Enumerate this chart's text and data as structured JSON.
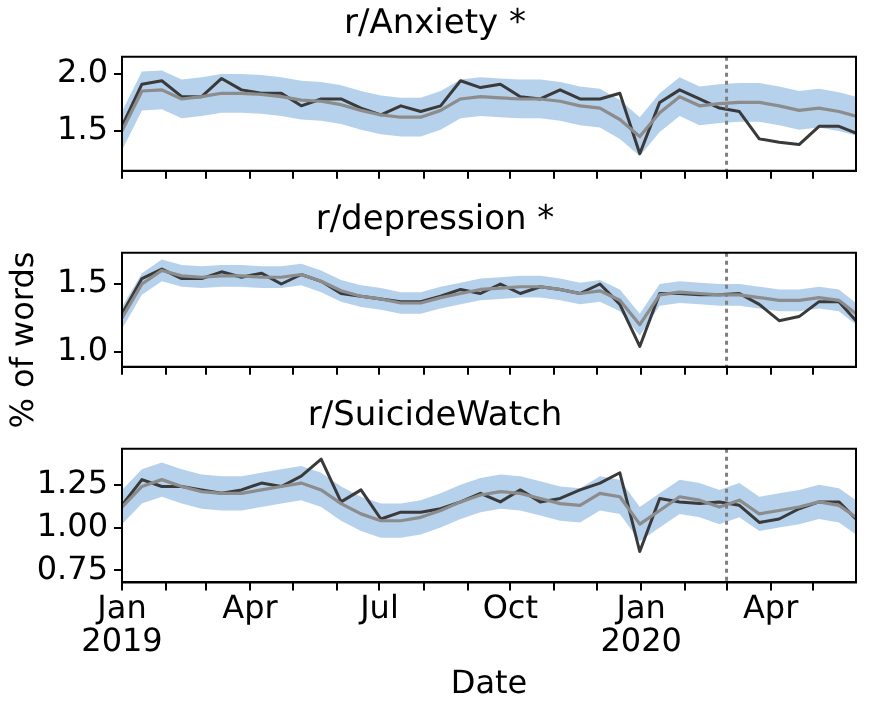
{
  "chart_data": [
    {
      "type": "line",
      "title": "r/Anxiety *",
      "tick_labels": "y",
      "grid": false,
      "legend": false,
      "marker": "none",
      "line_style": "solid",
      "x": [
        "2019-01-01",
        "2019-01-15",
        "2019-01-29",
        "2019-02-12",
        "2019-02-26",
        "2019-03-12",
        "2019-03-26",
        "2019-04-09",
        "2019-04-23",
        "2019-05-07",
        "2019-05-21",
        "2019-06-04",
        "2019-06-18",
        "2019-07-02",
        "2019-07-16",
        "2019-07-30",
        "2019-08-13",
        "2019-08-27",
        "2019-09-10",
        "2019-09-24",
        "2019-10-08",
        "2019-10-22",
        "2019-11-05",
        "2019-11-19",
        "2019-12-03",
        "2019-12-17",
        "2019-12-31",
        "2020-01-14",
        "2020-01-28",
        "2020-02-11",
        "2020-02-25",
        "2020-03-10",
        "2020-03-24",
        "2020-04-07",
        "2020-04-21",
        "2020-05-05",
        "2020-05-19",
        "2020-05-31"
      ],
      "xlim": [
        "2019-01-01",
        "2020-05-31"
      ],
      "xticks": [
        {
          "value": "2019-01-01",
          "label": null
        },
        {
          "value": "2019-02-01",
          "label": null
        },
        {
          "value": "2019-03-01",
          "label": null
        },
        {
          "value": "2019-04-01",
          "label": null
        },
        {
          "value": "2019-05-01",
          "label": null
        },
        {
          "value": "2019-06-01",
          "label": null
        },
        {
          "value": "2019-07-01",
          "label": null
        },
        {
          "value": "2019-08-01",
          "label": null
        },
        {
          "value": "2019-09-01",
          "label": null
        },
        {
          "value": "2019-10-01",
          "label": null
        },
        {
          "value": "2019-11-01",
          "label": null
        },
        {
          "value": "2019-12-01",
          "label": null
        },
        {
          "value": "2020-01-01",
          "label": null
        },
        {
          "value": "2020-02-01",
          "label": null
        },
        {
          "value": "2020-03-01",
          "label": null
        },
        {
          "value": "2020-04-01",
          "label": null
        },
        {
          "value": "2020-05-01",
          "label": null
        }
      ],
      "ylim": [
        1.15,
        2.15
      ],
      "yticks": [
        {
          "value": 1.5,
          "label": "1.5"
        },
        {
          "value": 2.0,
          "label": "2.0"
        }
      ],
      "ref_lines": [
        {
          "axis": "x",
          "value": "2020-03-01",
          "color": "#808080",
          "line_style": "dotted"
        }
      ],
      "series": [
        {
          "color": "#8c8c8c",
          "values": [
            1.5,
            1.85,
            1.86,
            1.78,
            1.8,
            1.83,
            1.83,
            1.82,
            1.8,
            1.77,
            1.76,
            1.73,
            1.68,
            1.64,
            1.62,
            1.62,
            1.68,
            1.78,
            1.8,
            1.79,
            1.78,
            1.78,
            1.76,
            1.72,
            1.7,
            1.6,
            1.45,
            1.66,
            1.8,
            1.72,
            1.74,
            1.75,
            1.75,
            1.72,
            1.68,
            1.7,
            1.67,
            1.63
          ],
          "lower": [
            1.33,
            1.68,
            1.69,
            1.61,
            1.63,
            1.66,
            1.66,
            1.65,
            1.63,
            1.6,
            1.59,
            1.56,
            1.51,
            1.47,
            1.45,
            1.45,
            1.51,
            1.61,
            1.63,
            1.62,
            1.61,
            1.61,
            1.59,
            1.55,
            1.53,
            1.43,
            1.28,
            1.49,
            1.63,
            1.55,
            1.57,
            1.58,
            1.58,
            1.55,
            1.51,
            1.53,
            1.5,
            1.46
          ],
          "upper": [
            1.67,
            2.02,
            2.03,
            1.95,
            1.97,
            2.0,
            2.0,
            1.99,
            1.97,
            1.94,
            1.93,
            1.9,
            1.85,
            1.81,
            1.79,
            1.79,
            1.85,
            1.95,
            1.97,
            1.96,
            1.95,
            1.95,
            1.93,
            1.89,
            1.87,
            1.77,
            1.62,
            1.83,
            1.97,
            1.89,
            1.91,
            1.92,
            1.92,
            1.89,
            1.85,
            1.87,
            1.84,
            1.8
          ]
        },
        {
          "color": "#3a3a3a",
          "values": [
            1.54,
            1.91,
            1.94,
            1.8,
            1.8,
            1.96,
            1.86,
            1.83,
            1.83,
            1.72,
            1.78,
            1.78,
            1.7,
            1.64,
            1.72,
            1.67,
            1.72,
            1.94,
            1.88,
            1.91,
            1.8,
            1.78,
            1.86,
            1.78,
            1.78,
            1.83,
            1.3,
            1.75,
            1.86,
            1.78,
            1.7,
            1.67,
            1.43,
            1.4,
            1.38,
            1.54,
            1.54,
            1.48
          ]
        }
      ]
    },
    {
      "type": "line",
      "title": "r/depression *",
      "ylabel": "% of words",
      "tick_labels": "y",
      "grid": false,
      "legend": false,
      "marker": "none",
      "line_style": "solid",
      "x": [
        "2019-01-01",
        "2019-01-15",
        "2019-01-29",
        "2019-02-12",
        "2019-02-26",
        "2019-03-12",
        "2019-03-26",
        "2019-04-09",
        "2019-04-23",
        "2019-05-07",
        "2019-05-21",
        "2019-06-04",
        "2019-06-18",
        "2019-07-02",
        "2019-07-16",
        "2019-07-30",
        "2019-08-13",
        "2019-08-27",
        "2019-09-10",
        "2019-09-24",
        "2019-10-08",
        "2019-10-22",
        "2019-11-05",
        "2019-11-19",
        "2019-12-03",
        "2019-12-17",
        "2019-12-31",
        "2020-01-14",
        "2020-01-28",
        "2020-02-11",
        "2020-02-25",
        "2020-03-10",
        "2020-03-24",
        "2020-04-07",
        "2020-04-21",
        "2020-05-05",
        "2020-05-19",
        "2020-05-31"
      ],
      "xlim": [
        "2019-01-01",
        "2020-05-31"
      ],
      "xticks": [
        {
          "value": "2019-01-01",
          "label": null
        },
        {
          "value": "2019-02-01",
          "label": null
        },
        {
          "value": "2019-03-01",
          "label": null
        },
        {
          "value": "2019-04-01",
          "label": null
        },
        {
          "value": "2019-05-01",
          "label": null
        },
        {
          "value": "2019-06-01",
          "label": null
        },
        {
          "value": "2019-07-01",
          "label": null
        },
        {
          "value": "2019-08-01",
          "label": null
        },
        {
          "value": "2019-09-01",
          "label": null
        },
        {
          "value": "2019-10-01",
          "label": null
        },
        {
          "value": "2019-11-01",
          "label": null
        },
        {
          "value": "2019-12-01",
          "label": null
        },
        {
          "value": "2020-01-01",
          "label": null
        },
        {
          "value": "2020-02-01",
          "label": null
        },
        {
          "value": "2020-03-01",
          "label": null
        },
        {
          "value": "2020-04-01",
          "label": null
        },
        {
          "value": "2020-05-01",
          "label": null
        }
      ],
      "ylim": [
        0.89,
        1.73
      ],
      "yticks": [
        {
          "value": 1.0,
          "label": "1.0"
        },
        {
          "value": 1.5,
          "label": "1.5"
        }
      ],
      "ref_lines": [
        {
          "axis": "x",
          "value": "2020-03-01",
          "color": "#808080",
          "line_style": "dotted"
        }
      ],
      "series": [
        {
          "color": "#8c8c8c",
          "values": [
            1.25,
            1.5,
            1.6,
            1.56,
            1.55,
            1.56,
            1.56,
            1.55,
            1.55,
            1.57,
            1.52,
            1.45,
            1.41,
            1.39,
            1.36,
            1.36,
            1.4,
            1.43,
            1.46,
            1.47,
            1.48,
            1.48,
            1.46,
            1.43,
            1.45,
            1.38,
            1.2,
            1.42,
            1.44,
            1.43,
            1.42,
            1.42,
            1.4,
            1.38,
            1.38,
            1.4,
            1.38,
            1.28
          ],
          "lower": [
            1.17,
            1.42,
            1.52,
            1.48,
            1.47,
            1.48,
            1.48,
            1.47,
            1.47,
            1.49,
            1.44,
            1.37,
            1.33,
            1.31,
            1.28,
            1.28,
            1.32,
            1.35,
            1.38,
            1.39,
            1.4,
            1.4,
            1.38,
            1.35,
            1.37,
            1.3,
            1.12,
            1.34,
            1.36,
            1.35,
            1.34,
            1.34,
            1.32,
            1.3,
            1.3,
            1.32,
            1.3,
            1.2
          ],
          "upper": [
            1.33,
            1.58,
            1.68,
            1.64,
            1.63,
            1.64,
            1.64,
            1.63,
            1.63,
            1.65,
            1.6,
            1.53,
            1.49,
            1.47,
            1.44,
            1.44,
            1.48,
            1.51,
            1.54,
            1.55,
            1.56,
            1.56,
            1.54,
            1.51,
            1.53,
            1.46,
            1.28,
            1.5,
            1.52,
            1.51,
            1.5,
            1.5,
            1.48,
            1.46,
            1.46,
            1.48,
            1.46,
            1.36
          ]
        },
        {
          "color": "#3a3a3a",
          "values": [
            1.28,
            1.54,
            1.61,
            1.54,
            1.54,
            1.59,
            1.55,
            1.58,
            1.5,
            1.57,
            1.52,
            1.43,
            1.41,
            1.39,
            1.37,
            1.37,
            1.41,
            1.46,
            1.43,
            1.5,
            1.43,
            1.48,
            1.46,
            1.43,
            1.5,
            1.35,
            1.04,
            1.43,
            1.43,
            1.42,
            1.42,
            1.43,
            1.35,
            1.23,
            1.26,
            1.37,
            1.37,
            1.23
          ]
        }
      ]
    },
    {
      "type": "line",
      "title": "r/SuicideWatch",
      "xlabel": "Date",
      "grid": false,
      "legend": false,
      "marker": "none",
      "line_style": "solid",
      "x": [
        "2019-01-01",
        "2019-01-15",
        "2019-01-29",
        "2019-02-12",
        "2019-02-26",
        "2019-03-12",
        "2019-03-26",
        "2019-04-09",
        "2019-04-23",
        "2019-05-07",
        "2019-05-21",
        "2019-06-04",
        "2019-06-18",
        "2019-07-02",
        "2019-07-16",
        "2019-07-30",
        "2019-08-13",
        "2019-08-27",
        "2019-09-10",
        "2019-09-24",
        "2019-10-08",
        "2019-10-22",
        "2019-11-05",
        "2019-11-19",
        "2019-12-03",
        "2019-12-17",
        "2019-12-31",
        "2020-01-14",
        "2020-01-28",
        "2020-02-11",
        "2020-02-25",
        "2020-03-10",
        "2020-03-24",
        "2020-04-07",
        "2020-04-21",
        "2020-05-05",
        "2020-05-19",
        "2020-05-31"
      ],
      "xlim": [
        "2019-01-01",
        "2020-05-31"
      ],
      "xticks": [
        {
          "value": "2019-01-01",
          "label": "Jan\n2019"
        },
        {
          "value": "2019-02-01",
          "label": null
        },
        {
          "value": "2019-03-01",
          "label": null
        },
        {
          "value": "2019-04-01",
          "label": "Apr"
        },
        {
          "value": "2019-05-01",
          "label": null
        },
        {
          "value": "2019-06-01",
          "label": null
        },
        {
          "value": "2019-07-01",
          "label": "Jul"
        },
        {
          "value": "2019-08-01",
          "label": null
        },
        {
          "value": "2019-09-01",
          "label": null
        },
        {
          "value": "2019-10-01",
          "label": "Oct"
        },
        {
          "value": "2019-11-01",
          "label": null
        },
        {
          "value": "2019-12-01",
          "label": null
        },
        {
          "value": "2020-01-01",
          "label": "Jan\n2020"
        },
        {
          "value": "2020-02-01",
          "label": null
        },
        {
          "value": "2020-03-01",
          "label": null
        },
        {
          "value": "2020-04-01",
          "label": "Apr"
        },
        {
          "value": "2020-05-01",
          "label": null
        }
      ],
      "ylim": [
        0.68,
        1.46
      ],
      "yticks": [
        {
          "value": 0.75,
          "label": "0.75"
        },
        {
          "value": 1.0,
          "label": "1.00"
        },
        {
          "value": 1.25,
          "label": "1.25"
        }
      ],
      "ref_lines": [
        {
          "axis": "x",
          "value": "2020-03-01",
          "color": "#808080",
          "line_style": "dotted"
        }
      ],
      "series": [
        {
          "color": "#8c8c8c",
          "values": [
            1.12,
            1.24,
            1.28,
            1.24,
            1.21,
            1.2,
            1.2,
            1.22,
            1.24,
            1.26,
            1.22,
            1.14,
            1.08,
            1.04,
            1.04,
            1.06,
            1.1,
            1.15,
            1.19,
            1.21,
            1.2,
            1.17,
            1.14,
            1.13,
            1.2,
            1.18,
            1.02,
            1.1,
            1.18,
            1.16,
            1.12,
            1.16,
            1.08,
            1.1,
            1.12,
            1.15,
            1.13,
            1.06
          ],
          "lower": [
            1.02,
            1.14,
            1.18,
            1.14,
            1.11,
            1.1,
            1.1,
            1.12,
            1.14,
            1.16,
            1.12,
            1.04,
            0.98,
            0.94,
            0.94,
            0.96,
            1.0,
            1.05,
            1.09,
            1.11,
            1.1,
            1.07,
            1.04,
            1.03,
            1.1,
            1.08,
            0.92,
            1.0,
            1.08,
            1.06,
            1.02,
            1.06,
            0.98,
            1.0,
            1.02,
            1.05,
            1.03,
            0.96
          ],
          "upper": [
            1.22,
            1.34,
            1.38,
            1.34,
            1.31,
            1.3,
            1.3,
            1.32,
            1.34,
            1.36,
            1.32,
            1.24,
            1.18,
            1.14,
            1.14,
            1.16,
            1.2,
            1.25,
            1.29,
            1.31,
            1.3,
            1.27,
            1.24,
            1.23,
            1.3,
            1.28,
            1.12,
            1.2,
            1.28,
            1.26,
            1.22,
            1.26,
            1.18,
            1.2,
            1.22,
            1.25,
            1.23,
            1.16
          ]
        },
        {
          "color": "#3a3a3a",
          "values": [
            1.13,
            1.28,
            1.24,
            1.24,
            1.22,
            1.2,
            1.22,
            1.26,
            1.24,
            1.3,
            1.4,
            1.15,
            1.22,
            1.05,
            1.09,
            1.09,
            1.11,
            1.15,
            1.2,
            1.15,
            1.22,
            1.15,
            1.17,
            1.22,
            1.26,
            1.32,
            0.86,
            1.17,
            1.15,
            1.14,
            1.15,
            1.13,
            1.03,
            1.05,
            1.11,
            1.15,
            1.15,
            1.05
          ]
        }
      ]
    }
  ]
}
